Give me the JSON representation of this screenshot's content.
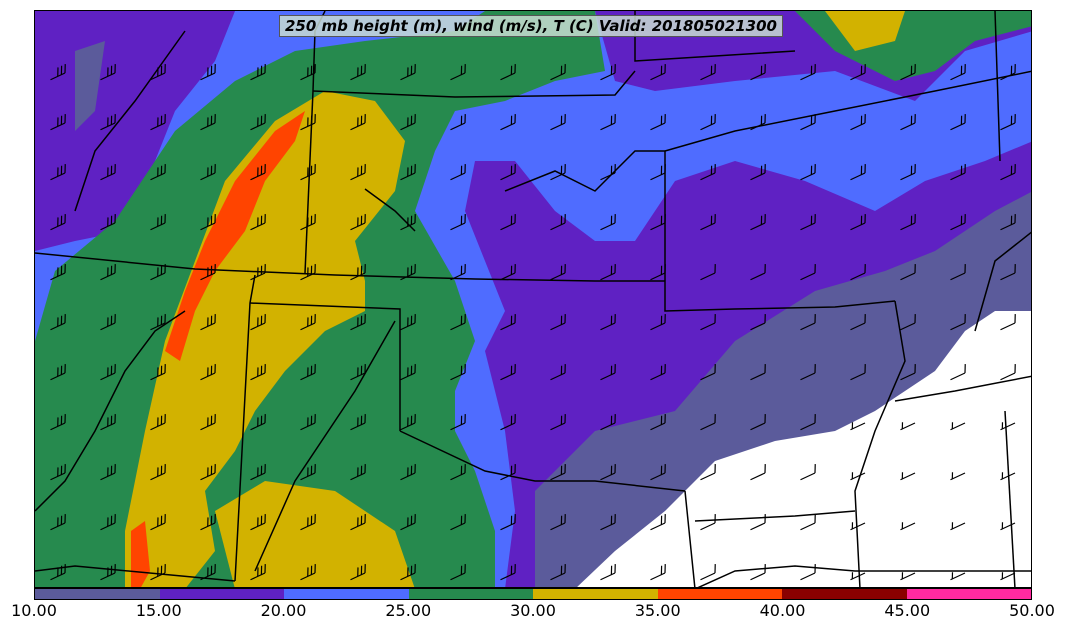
{
  "title": "250 mb height (m), wind (m/s), T (C) Valid: 201805021300",
  "colorbar": {
    "ticks": [
      "10.00",
      "15.00",
      "20.00",
      "25.00",
      "30.00",
      "35.00",
      "40.00",
      "45.00",
      "50.00"
    ],
    "bins": [
      {
        "range": [
          10,
          15
        ],
        "color": "#5b5b9b"
      },
      {
        "range": [
          15,
          20
        ],
        "color": "#5f21c3"
      },
      {
        "range": [
          20,
          25
        ],
        "color": "#4f6cff"
      },
      {
        "range": [
          25,
          30
        ],
        "color": "#268a4e"
      },
      {
        "range": [
          30,
          35
        ],
        "color": "#d2b200"
      },
      {
        "range": [
          35,
          40
        ],
        "color": "#ff4400"
      },
      {
        "range": [
          40,
          45
        ],
        "color": "#8a0000"
      },
      {
        "range": [
          45,
          50
        ],
        "color": "#ff2aa0"
      }
    ]
  },
  "wind_barbs": {
    "icon": "wind-barb-icon",
    "direction": "from west-southwest",
    "strength_pattern": "strongest along the jet over Utah/Wyoming, weakest in the southeast"
  }
}
